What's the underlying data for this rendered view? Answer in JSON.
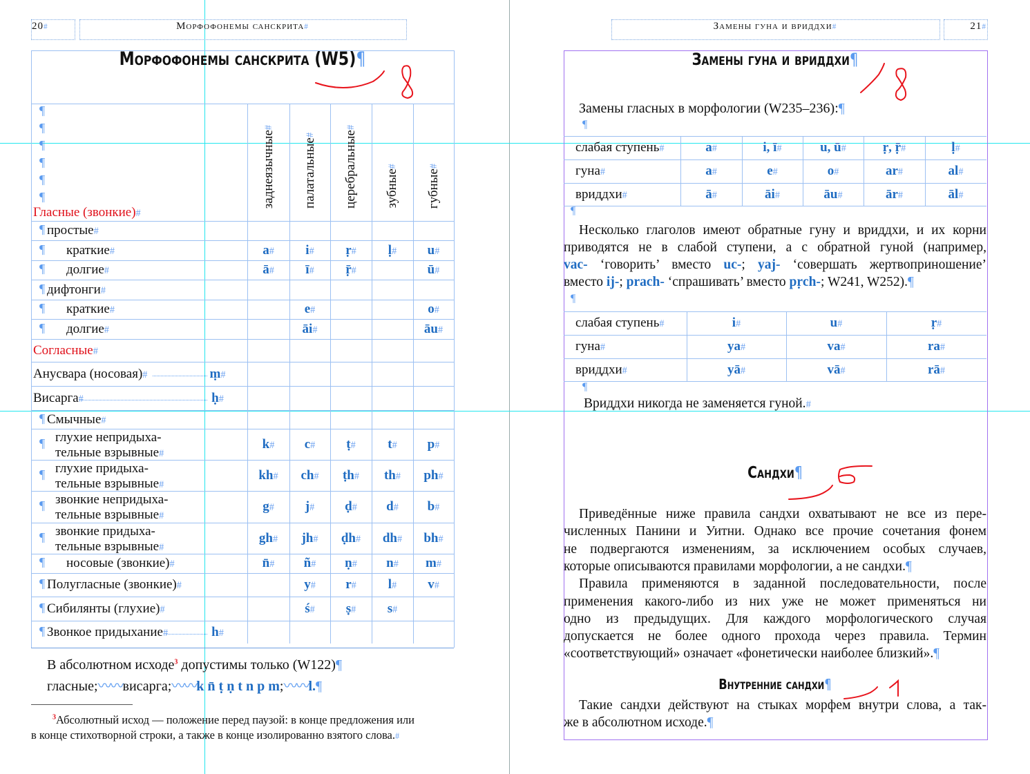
{
  "left_page": {
    "page_number": "20",
    "running_head": "Морфофонемы санскрита",
    "title": "Морфофонемы санскрита (W5)",
    "column_headers": [
      "заднеязычные",
      "палатальные",
      "церебральные",
      "зубные",
      "губные"
    ],
    "vowels_heading": "Гласные (звонкие)",
    "rows": [
      {
        "label": "простые",
        "level": 0,
        "cells": [
          "",
          "",
          "",
          "",
          ""
        ]
      },
      {
        "label": "краткие",
        "level": 1,
        "cells": [
          "a",
          "i",
          "ṛ",
          "ḷ",
          "u"
        ]
      },
      {
        "label": "долгие",
        "level": 1,
        "cells": [
          "ā",
          "ī",
          "ṝ",
          "",
          "ū"
        ]
      },
      {
        "label": "дифтонги",
        "level": 0,
        "cells": [
          "",
          "",
          "",
          "",
          ""
        ]
      },
      {
        "label": "краткие",
        "level": 1,
        "cells": [
          "",
          "e",
          "",
          "",
          "o"
        ]
      },
      {
        "label": "долгие",
        "level": 1,
        "cells": [
          "",
          "āi",
          "",
          "",
          "āu"
        ]
      },
      {
        "label": "Согласные",
        "level": -1,
        "red": true,
        "cells": [
          "",
          "",
          "",
          "",
          ""
        ]
      },
      {
        "label": "Анусвара (носовая)",
        "level": -1,
        "extra": "ṃ",
        "cells": [
          "",
          "",
          "",
          "",
          ""
        ]
      },
      {
        "label": "Висарга",
        "level": -1,
        "extra": "ḥ",
        "cells": [
          "",
          "",
          "",
          "",
          ""
        ]
      },
      {
        "label": "Смычные",
        "level": 0,
        "cells": [
          "",
          "",
          "",
          "",
          ""
        ]
      },
      {
        "label": "глухие непридыха-",
        "label2": "тельные взрывные",
        "level": 1,
        "cells": [
          "k",
          "c",
          "ṭ",
          "t",
          "p"
        ]
      },
      {
        "label": "глухие придыха-",
        "label2": "тельные взрывные",
        "level": 1,
        "cells": [
          "kh",
          "ch",
          "ṭh",
          "th",
          "ph"
        ]
      },
      {
        "label": "звонкие непридыха-",
        "label2": "тельные взрывные",
        "level": 1,
        "cells": [
          "g",
          "j",
          "ḍ",
          "d",
          "b"
        ]
      },
      {
        "label": "звонкие придыха-",
        "label2": "тельные взрывные",
        "level": 1,
        "cells": [
          "gh",
          "jh",
          "ḍh",
          "dh",
          "bh"
        ]
      },
      {
        "label": "носовые (звонкие)",
        "level": 1,
        "cells": [
          "n̄",
          "ñ",
          "ṇ",
          "n",
          "m"
        ]
      },
      {
        "label": "Полугласные (звонкие)",
        "level": 0,
        "cells": [
          "",
          "y",
          "r",
          "l",
          "v"
        ]
      },
      {
        "label": "Сибилянты (глухие)",
        "level": 0,
        "cells": [
          "",
          "ś",
          "ṣ",
          "s",
          ""
        ]
      },
      {
        "label": "Звонкое придыхание",
        "level": 0,
        "extra": "h",
        "cells": [
          "",
          "",
          "",
          "",
          ""
        ]
      }
    ],
    "absolute_end_line1": "В абсолютном исходе",
    "footnote_mark": "3",
    "absolute_end_line1b": " допустимы только (W122)",
    "absolute_end_vowels": "гласные;",
    "absolute_end_visarga": "висарга;",
    "absolute_end_consonants": "k n̄ ṭ ṇ t n p m",
    "absolute_end_l": "l.",
    "footnote_line1": "Абсолютный исход — положение перед паузой: в конце предложения или",
    "footnote_line2": "в конце стихотворной строки, а также в конце изолированно взятого слова."
  },
  "right_page": {
    "page_number": "21",
    "running_head": "Замены гуна и вриддхи",
    "title": "Замены гуна и вриддхи",
    "intro": "Замены гласных в морфологии (W235–236):",
    "table1": [
      {
        "label": "слабая ступень",
        "cells": [
          "a",
          "i, ī",
          "u, ū",
          "ṛ, ṝ",
          "ḷ"
        ]
      },
      {
        "label": "гуна",
        "cells": [
          "a",
          "e",
          "o",
          "ar",
          "al"
        ]
      },
      {
        "label": "вриддхи",
        "cells": [
          "ā",
          "āi",
          "āu",
          "ār",
          "āl"
        ]
      }
    ],
    "para1": [
      [
        {
          "t": "Несколько глаголов имеют обратные гуну и вриддхи, и их корни"
        }
      ],
      [
        {
          "t": "приводятся не в слабой ступени, а с обратной гуной (например,"
        }
      ],
      [
        {
          "t": "vac-",
          "s": true
        },
        {
          "t": " ‘говорить’ вместо "
        },
        {
          "t": "uc-",
          "s": true
        },
        {
          "t": "; "
        },
        {
          "t": "yaj-",
          "s": true
        },
        {
          "t": " ‘совершать жертвоприношение’"
        }
      ],
      [
        {
          "t": "вместо "
        },
        {
          "t": "ij-",
          "s": true
        },
        {
          "t": "; "
        },
        {
          "t": "prach-",
          "s": true
        },
        {
          "t": " ‘спрашивать’ вместо "
        },
        {
          "t": "pṛch-",
          "s": true
        },
        {
          "t": "; W241, W252)."
        }
      ]
    ],
    "table2": [
      {
        "label": "слабая ступень",
        "cells": [
          "i",
          "u",
          "ṛ"
        ]
      },
      {
        "label": "гуна",
        "cells": [
          "ya",
          "va",
          "ra"
        ]
      },
      {
        "label": "вриддхи",
        "cells": [
          "yā",
          "vā",
          "rā"
        ]
      }
    ],
    "vriddhi_note": "Вриддхи никогда не заменяется гуной.",
    "sandhi_title": "Сандхи",
    "sandhi_lines": [
      "Приведённые ниже правила сандхи охватывают не все из пере-",
      "численных Панини и Уитни. Однако все прочие сочетания фонем",
      "не подвергаются изменениям, за исключением особых случаев,",
      "которые описываются правилами морфологии, а не сандхи.",
      "Правила применяются в заданной последовательности, после",
      "применения какого-либо из них уже не может применяться ни",
      "одно из предыдущих. Для каждого морфологического случая",
      "допускается не более одного прохода через правила. Термин",
      "«соответствующий» означает «фонетически наиболее близкий»."
    ],
    "internal_title": "Внутренние сандхи",
    "internal_lines": [
      "Такие сандхи действуют на стыках морфем внутри слова, а так-",
      "же в абсолютном исходе."
    ]
  },
  "annotations": {
    "color": "#e8141c",
    "marks": [
      "8",
      "8",
      "6",
      "1"
    ]
  },
  "colors": {
    "sanskrit": "#1f6cc2",
    "heading_red": "#e0101a",
    "guide": "#22e6ee",
    "frame": "#a070f0",
    "table_rule": "#9cc0f2"
  }
}
